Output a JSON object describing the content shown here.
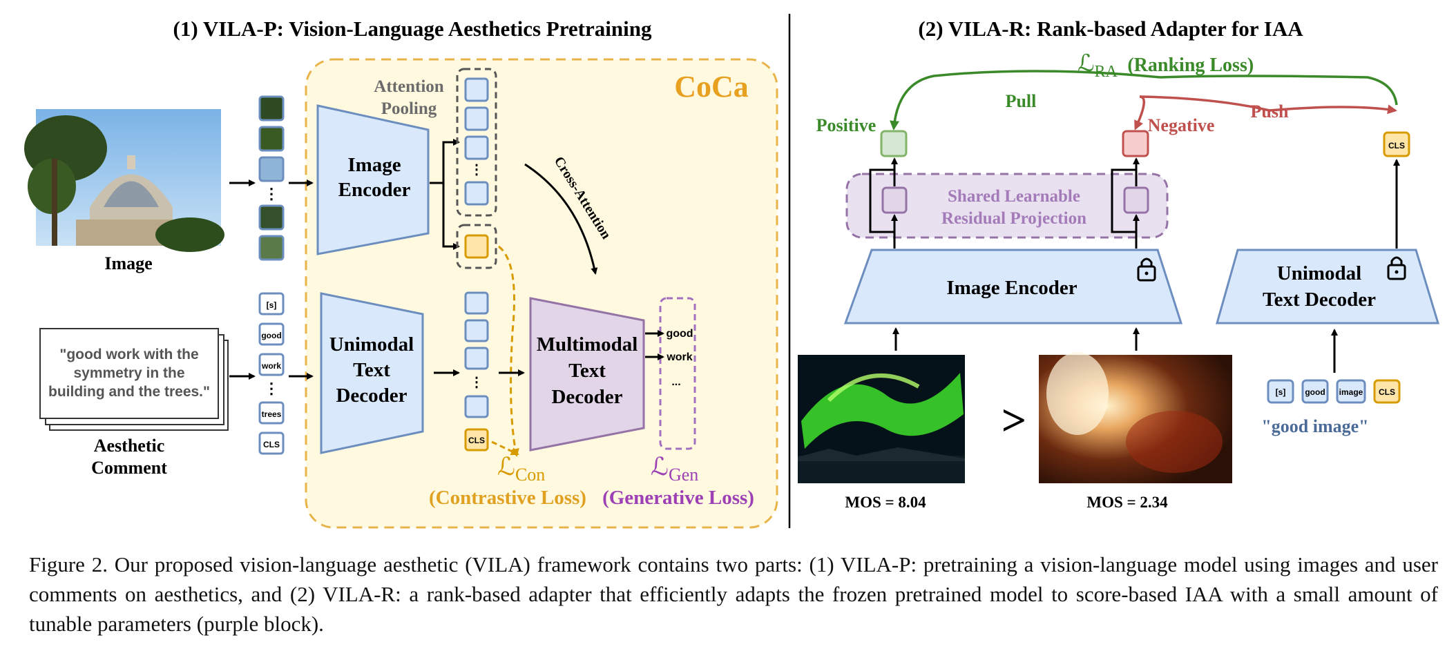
{
  "left_panel": {
    "title": "(1) VILA-P: Vision-Language Aesthetics Pretraining",
    "coca_label": "CoCa",
    "image_label": "Image",
    "comment_text": [
      "\"good work with the",
      "symmetry in the",
      "building and the trees.\""
    ],
    "comment_label": [
      "Aesthetic",
      "Comment"
    ],
    "text_tokens": [
      "[s]",
      "good",
      "work",
      "⋮",
      "trees",
      "CLS"
    ],
    "attention_pooling": [
      "Attention",
      "Pooling"
    ],
    "image_encoder": [
      "Image",
      "Encoder"
    ],
    "unimodal_decoder": [
      "Unimodal",
      "Text",
      "Decoder"
    ],
    "multimodal_decoder": [
      "Multimodal",
      "Text",
      "Decoder"
    ],
    "cross_attention": "Cross-Attention",
    "output_tokens": [
      "good",
      "work",
      "..."
    ],
    "cls_token": "CLS",
    "con_loss_symbol": "ℒ",
    "con_loss_sub": "Con",
    "gen_loss_symbol": "ℒ",
    "gen_loss_sub": "Gen",
    "contrastive_loss": "(Contrastive Loss)",
    "generative_loss": "(Generative Loss)"
  },
  "right_panel": {
    "title": "(2) VILA-R: Rank-based Adapter for IAA",
    "ranking_loss_symbol": "ℒ",
    "ranking_loss_sub": "RA",
    "ranking_loss": "(Ranking Loss)",
    "pull": "Pull",
    "push": "Push",
    "positive": "Positive",
    "negative": "Negative",
    "cls_token": "CLS",
    "residual_projection": [
      "Shared Learnable",
      "Residual Projection"
    ],
    "image_encoder": "Image Encoder",
    "text_decoder": [
      "Unimodal",
      "Text Decoder"
    ],
    "tokens": [
      "[s]",
      "good",
      "image",
      "CLS"
    ],
    "prompt": "\"good image\"",
    "comparison": ">",
    "mos_left": "MOS = 8.04",
    "mos_right": "MOS = 2.34"
  },
  "caption": "Figure 2. Our proposed vision-language aesthetic (VILA) framework contains two parts: (1) VILA-P: pretraining a vision-language model using images and user comments on aesthetics, and (2) VILA-R: a rank-based adapter that efficiently adapts the frozen pretrained model to score-based IAA with a small amount of tunable parameters (purple block).",
  "colors": {
    "encoder_fill": "#dae8fc",
    "encoder_stroke": "#6c8ebf",
    "multimodal_fill": "#e1d5e7",
    "multimodal_stroke": "#9673a6",
    "coca_fill": "#fff9e0",
    "coca_stroke": "#e8b44a",
    "orange": "#d79b00",
    "green": "#3a8a2a",
    "red": "#c0504d",
    "purple": "#9d3fb5"
  }
}
